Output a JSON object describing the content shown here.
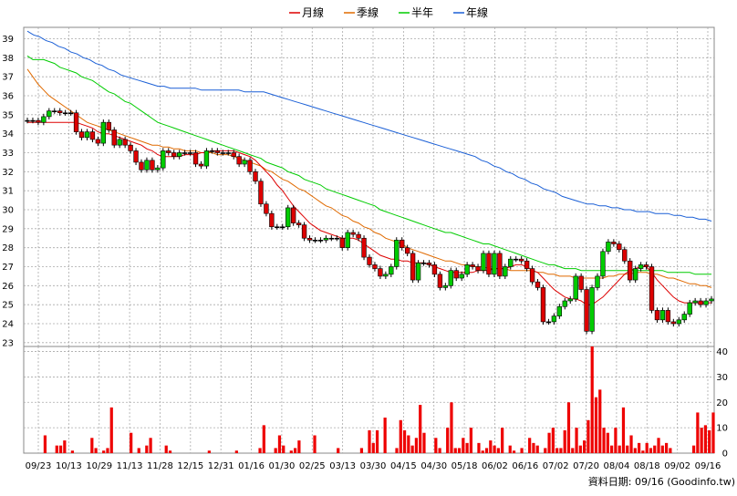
{
  "legend": {
    "ma20_label": "月線",
    "ma60_label": "季線",
    "ma120_label": "半年",
    "ma240_label": "年線"
  },
  "footer": {
    "date_label": "資料日期: 09/16 (Goodinfo.tw)"
  },
  "colors": {
    "up": "#00cc00",
    "down": "#dd0000",
    "ma20": "#dd0000",
    "ma60": "#e06a00",
    "ma120": "#00cc00",
    "ma240": "#1a5fd6",
    "volume": "#ee0000",
    "grid": "#aaaaaa"
  },
  "chart_data": [
    {
      "type": "candlestick",
      "title": "",
      "y_ticks": [
        23,
        24,
        25,
        26,
        27,
        28,
        29,
        30,
        31,
        32,
        33,
        34,
        35,
        36,
        37,
        38,
        39
      ],
      "ylim": [
        22.8,
        39.6
      ],
      "x_tick_labels": [
        "09/23",
        "10/13",
        "10/29",
        "11/13",
        "11/28",
        "12/15",
        "12/31",
        "01/16",
        "01/30",
        "02/25",
        "03/13",
        "03/30",
        "04/15",
        "04/30",
        "05/18",
        "06/02",
        "06/16",
        "07/02",
        "07/20",
        "08/04",
        "08/18",
        "09/02",
        "09/16"
      ],
      "closes": [
        34.7,
        34.7,
        34.6,
        34.9,
        35.2,
        35.2,
        35.1,
        35.1,
        35.1,
        34.1,
        33.8,
        34.1,
        33.7,
        33.5,
        34.6,
        34.2,
        33.4,
        33.7,
        33.4,
        33.1,
        32.5,
        32.1,
        32.6,
        32.1,
        32.2,
        33.1,
        33.0,
        32.8,
        33.0,
        33.0,
        33.0,
        32.4,
        32.3,
        33.1,
        33.1,
        33.0,
        33.0,
        33.0,
        32.8,
        32.4,
        32.6,
        32.0,
        31.5,
        30.3,
        29.8,
        29.1,
        29.1,
        29.1,
        30.1,
        29.3,
        29.2,
        28.5,
        28.4,
        28.4,
        28.4,
        28.5,
        28.5,
        28.5,
        28.0,
        28.8,
        28.7,
        28.5,
        27.5,
        27.1,
        26.9,
        26.5,
        26.6,
        27.0,
        28.4,
        28.0,
        27.7,
        26.3,
        27.2,
        27.2,
        27.1,
        26.6,
        25.9,
        26.0,
        26.8,
        26.4,
        26.6,
        27.1,
        27.0,
        26.8,
        27.7,
        26.6,
        27.7,
        26.5,
        27.0,
        27.4,
        27.4,
        27.3,
        26.9,
        26.2,
        25.9,
        24.1,
        24.1,
        24.4,
        24.9,
        25.2,
        25.3,
        26.5,
        25.8,
        23.6,
        25.9,
        26.5,
        27.8,
        28.3,
        28.2,
        27.9,
        27.3,
        26.3,
        26.9,
        27.1,
        27.0,
        24.7,
        24.2,
        24.7,
        24.1,
        24.0,
        24.2,
        24.5,
        25.1,
        25.2,
        25.0,
        25.2,
        25.3
      ],
      "ma20": [
        34.6,
        34.6,
        34.6,
        34.6,
        34.6,
        34.6,
        34.6,
        34.6,
        34.6,
        34.6,
        34.5,
        34.4,
        34.3,
        34.1,
        34.0,
        34.0,
        33.9,
        33.8,
        33.7,
        33.6,
        33.5,
        33.4,
        33.2,
        33.1,
        32.9,
        32.8,
        32.8,
        32.8,
        32.8,
        32.9,
        32.9,
        32.9,
        33.0,
        33.0,
        33.1,
        33.1,
        33.1,
        33.1,
        33.1,
        33.0,
        32.9,
        32.8,
        32.6,
        32.3,
        32.0,
        31.7,
        31.3,
        31.0,
        30.6,
        30.2,
        29.9,
        29.6,
        29.3,
        29.1,
        28.9,
        28.8,
        28.7,
        28.6,
        28.5,
        28.5,
        28.5,
        28.4,
        28.2,
        28.0,
        27.8,
        27.6,
        27.5,
        27.4,
        27.4,
        27.3,
        27.3,
        27.2,
        27.2,
        27.2,
        27.1,
        27.0,
        26.9,
        26.8,
        26.7,
        26.7,
        26.7,
        26.7,
        26.7,
        26.8,
        26.8,
        26.8,
        26.9,
        26.9,
        26.9,
        27.0,
        27.1,
        27.1,
        27.0,
        26.8,
        26.7,
        26.4,
        26.1,
        25.8,
        25.6,
        25.4,
        25.3,
        25.3,
        25.2,
        25.0,
        25.0,
        25.2,
        25.4,
        25.7,
        26.0,
        26.3,
        26.6,
        26.8,
        26.9,
        27.0,
        27.0,
        26.7,
        26.3,
        26.0,
        25.7,
        25.4,
        25.2,
        25.1,
        25.1,
        25.1,
        25.1,
        25.1,
        25.1
      ],
      "ma60": [
        37.4,
        37.0,
        36.6,
        36.3,
        36.0,
        35.8,
        35.6,
        35.4,
        35.2,
        35.0,
        34.8,
        34.6,
        34.5,
        34.4,
        34.3,
        34.2,
        34.1,
        34.0,
        33.9,
        33.8,
        33.7,
        33.6,
        33.5,
        33.4,
        33.4,
        33.3,
        33.3,
        33.2,
        33.2,
        33.1,
        33.1,
        33.1,
        33.0,
        33.0,
        33.0,
        32.9,
        32.9,
        32.9,
        32.8,
        32.7,
        32.6,
        32.5,
        32.4,
        32.3,
        32.1,
        32.0,
        31.8,
        31.6,
        31.5,
        31.3,
        31.1,
        31.0,
        30.8,
        30.6,
        30.4,
        30.2,
        30.1,
        29.9,
        29.7,
        29.6,
        29.4,
        29.3,
        29.1,
        29.0,
        28.8,
        28.7,
        28.5,
        28.4,
        28.3,
        28.2,
        28.0,
        27.9,
        27.8,
        27.7,
        27.6,
        27.5,
        27.4,
        27.3,
        27.3,
        27.2,
        27.1,
        27.1,
        27.0,
        27.0,
        27.0,
        26.9,
        26.9,
        26.9,
        26.9,
        26.8,
        26.8,
        26.8,
        26.8,
        26.8,
        26.7,
        26.7,
        26.6,
        26.6,
        26.5,
        26.5,
        26.5,
        26.4,
        26.4,
        26.4,
        26.4,
        26.4,
        26.4,
        26.5,
        26.5,
        26.6,
        26.6,
        26.6,
        26.7,
        26.7,
        26.7,
        26.6,
        26.6,
        26.5,
        26.4,
        26.4,
        26.3,
        26.2,
        26.1,
        26.1,
        26.0,
        26.0,
        25.9
      ],
      "ma120": [
        38.1,
        37.9,
        37.9,
        37.9,
        37.8,
        37.7,
        37.5,
        37.4,
        37.3,
        37.2,
        37.0,
        36.9,
        36.8,
        36.6,
        36.4,
        36.2,
        36.1,
        35.9,
        35.7,
        35.6,
        35.4,
        35.2,
        35.0,
        34.8,
        34.6,
        34.5,
        34.4,
        34.3,
        34.2,
        34.1,
        34.0,
        33.9,
        33.8,
        33.7,
        33.6,
        33.5,
        33.4,
        33.3,
        33.2,
        33.1,
        33.0,
        32.9,
        32.8,
        32.7,
        32.5,
        32.4,
        32.3,
        32.2,
        32.0,
        31.9,
        31.8,
        31.6,
        31.5,
        31.4,
        31.3,
        31.1,
        31.0,
        30.9,
        30.8,
        30.7,
        30.6,
        30.5,
        30.4,
        30.3,
        30.2,
        30.0,
        29.9,
        29.8,
        29.7,
        29.6,
        29.5,
        29.4,
        29.3,
        29.2,
        29.1,
        29.0,
        28.9,
        28.8,
        28.8,
        28.7,
        28.6,
        28.5,
        28.4,
        28.3,
        28.2,
        28.2,
        28.1,
        28.0,
        27.9,
        27.8,
        27.7,
        27.6,
        27.5,
        27.4,
        27.3,
        27.2,
        27.1,
        27.1,
        27.0,
        26.9,
        26.9,
        26.9,
        26.8,
        26.8,
        26.8,
        26.8,
        26.8,
        26.8,
        26.8,
        26.8,
        26.8,
        26.8,
        26.8,
        26.8,
        26.8,
        26.8,
        26.8,
        26.8,
        26.7,
        26.7,
        26.7,
        26.7,
        26.7,
        26.6,
        26.6,
        26.6,
        26.6
      ],
      "ma240": [
        39.4,
        39.2,
        39.1,
        38.9,
        38.8,
        38.6,
        38.5,
        38.3,
        38.2,
        38.0,
        37.9,
        37.7,
        37.6,
        37.4,
        37.3,
        37.1,
        37.0,
        36.9,
        36.8,
        36.7,
        36.6,
        36.5,
        36.5,
        36.4,
        36.4,
        36.4,
        36.4,
        36.4,
        36.3,
        36.3,
        36.3,
        36.3,
        36.3,
        36.3,
        36.3,
        36.2,
        36.2,
        36.2,
        36.2,
        36.1,
        36.0,
        35.9,
        35.8,
        35.7,
        35.6,
        35.5,
        35.4,
        35.3,
        35.2,
        35.1,
        35.0,
        34.9,
        34.8,
        34.7,
        34.6,
        34.5,
        34.4,
        34.3,
        34.2,
        34.1,
        34.0,
        33.9,
        33.8,
        33.7,
        33.6,
        33.5,
        33.4,
        33.3,
        33.2,
        33.1,
        33.0,
        32.9,
        32.8,
        32.6,
        32.5,
        32.3,
        32.2,
        32.0,
        31.9,
        31.7,
        31.6,
        31.4,
        31.3,
        31.1,
        31.0,
        30.9,
        30.7,
        30.6,
        30.5,
        30.4,
        30.3,
        30.3,
        30.2,
        30.2,
        30.1,
        30.1,
        30.0,
        30.0,
        29.9,
        29.9,
        29.9,
        29.8,
        29.8,
        29.8,
        29.7,
        29.7,
        29.6,
        29.6,
        29.5,
        29.5,
        29.4
      ]
    },
    {
      "type": "bar",
      "title": "",
      "y_ticks": [
        0,
        10,
        20,
        30,
        40
      ],
      "ylim": [
        0,
        42
      ],
      "values": [
        0,
        0,
        0,
        0,
        0,
        7,
        0,
        0,
        3,
        3,
        5,
        0,
        1,
        0,
        0,
        0,
        0,
        6,
        2,
        0,
        1,
        2,
        18,
        0,
        0,
        0,
        0,
        8,
        0,
        2,
        0,
        3,
        6,
        0,
        0,
        0,
        3,
        1,
        0,
        0,
        0,
        0,
        0,
        0,
        0,
        0,
        0,
        1,
        0,
        0,
        0,
        0,
        0,
        0,
        1,
        0,
        0,
        0,
        0,
        0,
        2,
        11,
        0,
        0,
        2,
        7,
        3,
        0,
        1,
        2,
        5,
        0,
        0,
        0,
        7,
        0,
        0,
        0,
        0,
        0,
        2,
        0,
        0,
        0,
        0,
        0,
        2,
        0,
        9,
        4,
        9,
        0,
        14,
        0,
        0,
        2,
        13,
        9,
        7,
        3,
        6,
        19,
        8,
        0,
        0,
        6,
        2,
        0,
        10,
        20,
        2,
        2,
        6,
        4,
        10,
        0,
        4,
        1,
        2,
        5,
        3,
        2,
        10,
        0,
        3,
        1,
        0,
        2,
        0,
        6,
        4,
        3,
        0,
        2,
        8,
        10,
        2,
        2,
        9,
        20,
        2,
        10,
        3,
        5,
        13,
        42,
        22,
        25,
        10,
        8,
        3,
        10,
        3,
        18,
        3,
        7,
        2,
        4,
        1,
        4,
        2,
        3,
        6,
        3,
        4,
        2,
        0,
        0,
        0,
        0,
        0,
        3,
        16,
        10,
        11,
        9,
        16
      ]
    }
  ]
}
